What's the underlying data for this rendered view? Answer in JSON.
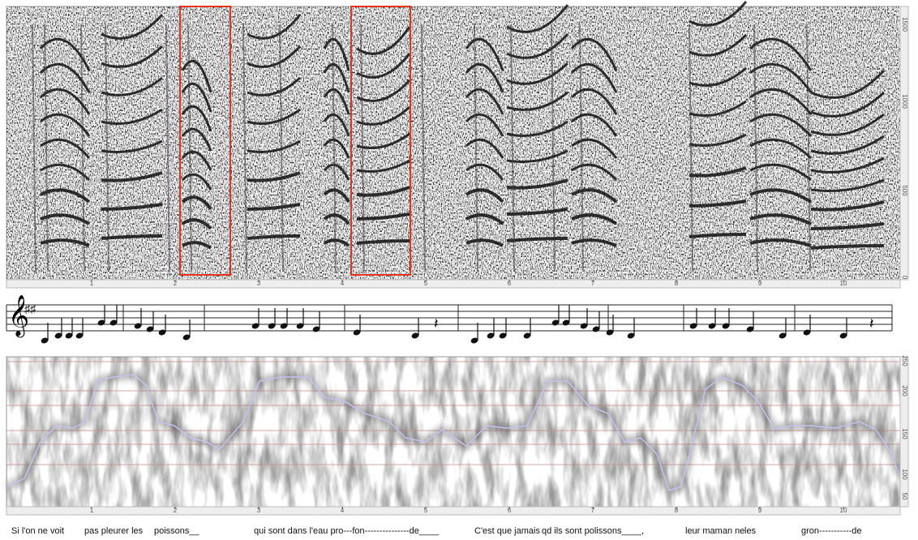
{
  "spectrogram": {
    "time_ticks": [
      "1",
      "2",
      "3",
      "4",
      "5",
      "6",
      "7",
      "8",
      "9",
      "10"
    ],
    "freq_ticks": [
      "1500",
      "1000",
      "500",
      "0"
    ]
  },
  "pitch": {
    "time_ticks": [
      "1",
      "2",
      "3",
      "4",
      "5",
      "6",
      "7",
      "8",
      "9",
      "10"
    ],
    "freq_ticks": [
      "250",
      "200",
      "150",
      "100",
      "50"
    ]
  },
  "lyrics": [
    "Si l'on ne voit",
    "pas pleurer les",
    "poissons__",
    "qui sont dans l'eau pro---fon---------------de____",
    "C'est que jamais",
    "qd ils sont polissons____,",
    "leur maman ne",
    "les",
    "gron-----------de"
  ]
}
